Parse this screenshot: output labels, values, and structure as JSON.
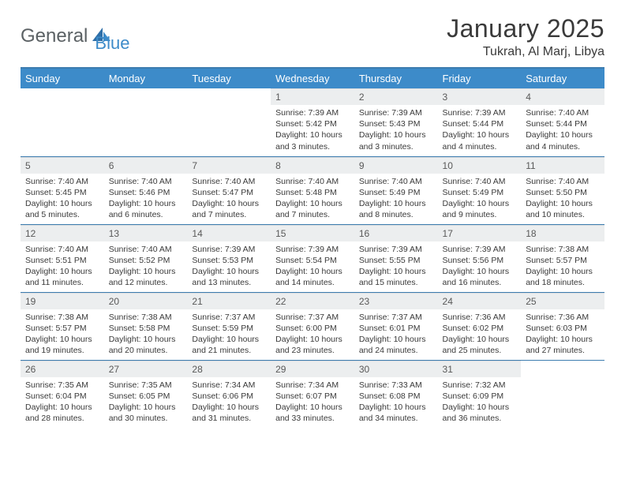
{
  "logo": {
    "part1": "General",
    "part2": "Blue"
  },
  "title": "January 2025",
  "location": "Tukrah, Al Marj, Libya",
  "colors": {
    "header_bg": "#3d8bc9",
    "rule": "#3d7db0",
    "daynum_bg": "#eceeef",
    "text": "#3a3a3a",
    "logo_gray": "#5b6164",
    "logo_blue": "#3d8bc9"
  },
  "weekdays": [
    "Sunday",
    "Monday",
    "Tuesday",
    "Wednesday",
    "Thursday",
    "Friday",
    "Saturday"
  ],
  "weeks": [
    [
      {
        "n": "",
        "sr": "",
        "ss": "",
        "dl": "",
        "empty": true
      },
      {
        "n": "",
        "sr": "",
        "ss": "",
        "dl": "",
        "empty": true
      },
      {
        "n": "",
        "sr": "",
        "ss": "",
        "dl": "",
        "empty": true
      },
      {
        "n": "1",
        "sr": "Sunrise: 7:39 AM",
        "ss": "Sunset: 5:42 PM",
        "dl": "Daylight: 10 hours and 3 minutes."
      },
      {
        "n": "2",
        "sr": "Sunrise: 7:39 AM",
        "ss": "Sunset: 5:43 PM",
        "dl": "Daylight: 10 hours and 3 minutes."
      },
      {
        "n": "3",
        "sr": "Sunrise: 7:39 AM",
        "ss": "Sunset: 5:44 PM",
        "dl": "Daylight: 10 hours and 4 minutes."
      },
      {
        "n": "4",
        "sr": "Sunrise: 7:40 AM",
        "ss": "Sunset: 5:44 PM",
        "dl": "Daylight: 10 hours and 4 minutes."
      }
    ],
    [
      {
        "n": "5",
        "sr": "Sunrise: 7:40 AM",
        "ss": "Sunset: 5:45 PM",
        "dl": "Daylight: 10 hours and 5 minutes."
      },
      {
        "n": "6",
        "sr": "Sunrise: 7:40 AM",
        "ss": "Sunset: 5:46 PM",
        "dl": "Daylight: 10 hours and 6 minutes."
      },
      {
        "n": "7",
        "sr": "Sunrise: 7:40 AM",
        "ss": "Sunset: 5:47 PM",
        "dl": "Daylight: 10 hours and 7 minutes."
      },
      {
        "n": "8",
        "sr": "Sunrise: 7:40 AM",
        "ss": "Sunset: 5:48 PM",
        "dl": "Daylight: 10 hours and 7 minutes."
      },
      {
        "n": "9",
        "sr": "Sunrise: 7:40 AM",
        "ss": "Sunset: 5:49 PM",
        "dl": "Daylight: 10 hours and 8 minutes."
      },
      {
        "n": "10",
        "sr": "Sunrise: 7:40 AM",
        "ss": "Sunset: 5:49 PM",
        "dl": "Daylight: 10 hours and 9 minutes."
      },
      {
        "n": "11",
        "sr": "Sunrise: 7:40 AM",
        "ss": "Sunset: 5:50 PM",
        "dl": "Daylight: 10 hours and 10 minutes."
      }
    ],
    [
      {
        "n": "12",
        "sr": "Sunrise: 7:40 AM",
        "ss": "Sunset: 5:51 PM",
        "dl": "Daylight: 10 hours and 11 minutes."
      },
      {
        "n": "13",
        "sr": "Sunrise: 7:40 AM",
        "ss": "Sunset: 5:52 PM",
        "dl": "Daylight: 10 hours and 12 minutes."
      },
      {
        "n": "14",
        "sr": "Sunrise: 7:39 AM",
        "ss": "Sunset: 5:53 PM",
        "dl": "Daylight: 10 hours and 13 minutes."
      },
      {
        "n": "15",
        "sr": "Sunrise: 7:39 AM",
        "ss": "Sunset: 5:54 PM",
        "dl": "Daylight: 10 hours and 14 minutes."
      },
      {
        "n": "16",
        "sr": "Sunrise: 7:39 AM",
        "ss": "Sunset: 5:55 PM",
        "dl": "Daylight: 10 hours and 15 minutes."
      },
      {
        "n": "17",
        "sr": "Sunrise: 7:39 AM",
        "ss": "Sunset: 5:56 PM",
        "dl": "Daylight: 10 hours and 16 minutes."
      },
      {
        "n": "18",
        "sr": "Sunrise: 7:38 AM",
        "ss": "Sunset: 5:57 PM",
        "dl": "Daylight: 10 hours and 18 minutes."
      }
    ],
    [
      {
        "n": "19",
        "sr": "Sunrise: 7:38 AM",
        "ss": "Sunset: 5:57 PM",
        "dl": "Daylight: 10 hours and 19 minutes."
      },
      {
        "n": "20",
        "sr": "Sunrise: 7:38 AM",
        "ss": "Sunset: 5:58 PM",
        "dl": "Daylight: 10 hours and 20 minutes."
      },
      {
        "n": "21",
        "sr": "Sunrise: 7:37 AM",
        "ss": "Sunset: 5:59 PM",
        "dl": "Daylight: 10 hours and 21 minutes."
      },
      {
        "n": "22",
        "sr": "Sunrise: 7:37 AM",
        "ss": "Sunset: 6:00 PM",
        "dl": "Daylight: 10 hours and 23 minutes."
      },
      {
        "n": "23",
        "sr": "Sunrise: 7:37 AM",
        "ss": "Sunset: 6:01 PM",
        "dl": "Daylight: 10 hours and 24 minutes."
      },
      {
        "n": "24",
        "sr": "Sunrise: 7:36 AM",
        "ss": "Sunset: 6:02 PM",
        "dl": "Daylight: 10 hours and 25 minutes."
      },
      {
        "n": "25",
        "sr": "Sunrise: 7:36 AM",
        "ss": "Sunset: 6:03 PM",
        "dl": "Daylight: 10 hours and 27 minutes."
      }
    ],
    [
      {
        "n": "26",
        "sr": "Sunrise: 7:35 AM",
        "ss": "Sunset: 6:04 PM",
        "dl": "Daylight: 10 hours and 28 minutes."
      },
      {
        "n": "27",
        "sr": "Sunrise: 7:35 AM",
        "ss": "Sunset: 6:05 PM",
        "dl": "Daylight: 10 hours and 30 minutes."
      },
      {
        "n": "28",
        "sr": "Sunrise: 7:34 AM",
        "ss": "Sunset: 6:06 PM",
        "dl": "Daylight: 10 hours and 31 minutes."
      },
      {
        "n": "29",
        "sr": "Sunrise: 7:34 AM",
        "ss": "Sunset: 6:07 PM",
        "dl": "Daylight: 10 hours and 33 minutes."
      },
      {
        "n": "30",
        "sr": "Sunrise: 7:33 AM",
        "ss": "Sunset: 6:08 PM",
        "dl": "Daylight: 10 hours and 34 minutes."
      },
      {
        "n": "31",
        "sr": "Sunrise: 7:32 AM",
        "ss": "Sunset: 6:09 PM",
        "dl": "Daylight: 10 hours and 36 minutes."
      },
      {
        "n": "",
        "sr": "",
        "ss": "",
        "dl": "",
        "empty": true
      }
    ]
  ]
}
